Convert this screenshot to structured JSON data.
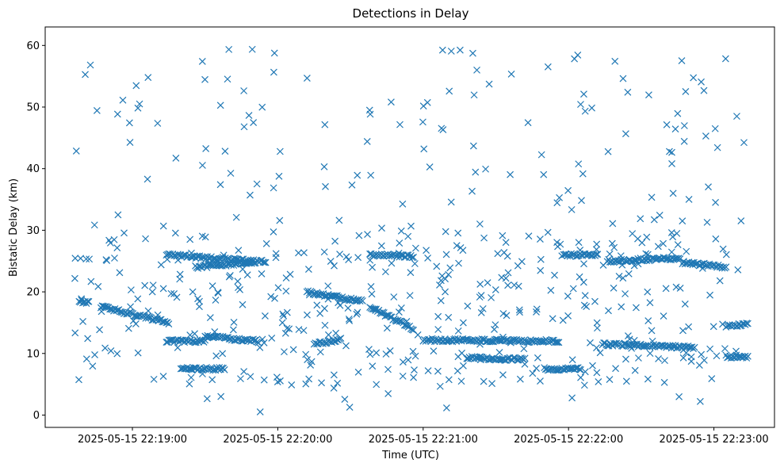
{
  "chart_data": {
    "type": "scatter",
    "title": "Detections in Delay",
    "xlabel": "Time (UTC)",
    "ylabel": "Bistatic Delay (km)",
    "x_axis_kind": "datetime",
    "xlim": [
      "2025-05-15 22:18:24",
      "2025-05-15 22:23:25"
    ],
    "ylim": [
      -2,
      63
    ],
    "x_ticks": [
      {
        "t": "2025-05-15 22:19:00",
        "label": "2025-05-15 22:19:00"
      },
      {
        "t": "2025-05-15 22:20:00",
        "label": "2025-05-15 22:20:00"
      },
      {
        "t": "2025-05-15 22:21:00",
        "label": "2025-05-15 22:21:00"
      },
      {
        "t": "2025-05-15 22:22:00",
        "label": "2025-05-15 22:22:00"
      },
      {
        "t": "2025-05-15 22:23:00",
        "label": "2025-05-15 22:23:00"
      }
    ],
    "y_ticks": [
      0,
      10,
      20,
      30,
      40,
      50,
      60
    ],
    "grid": false,
    "legend": "none",
    "marker": "x",
    "color": "#1f77b4",
    "start": "2025-05-15 22:18:36",
    "end": "2025-05-15 22:23:14",
    "tracks": [
      {
        "t0": "2025-05-15 22:18:38",
        "t1": "2025-05-15 22:18:42",
        "y0": 18.5,
        "y1": 18.2
      },
      {
        "t0": "2025-05-15 22:18:47",
        "t1": "2025-05-15 22:19:15",
        "y0": 17.6,
        "y1": 15.0
      },
      {
        "t0": "2025-05-15 22:19:26",
        "t1": "2025-05-15 22:19:55",
        "y0": 24.0,
        "y1": 25.0
      },
      {
        "t0": "2025-05-15 22:19:14",
        "t1": "2025-05-15 22:19:30",
        "y0": 12.0,
        "y1": 12.0
      },
      {
        "t0": "2025-05-15 22:19:30",
        "t1": "2025-05-15 22:19:52",
        "y0": 12.8,
        "y1": 12.0
      },
      {
        "t0": "2025-05-15 22:19:14",
        "t1": "2025-05-15 22:19:50",
        "y0": 26.0,
        "y1": 25.0
      },
      {
        "t0": "2025-05-15 22:19:20",
        "t1": "2025-05-15 22:19:38",
        "y0": 7.5,
        "y1": 7.5
      },
      {
        "t0": "2025-05-15 22:20:15",
        "t1": "2025-05-15 22:20:26",
        "y0": 11.5,
        "y1": 12.3
      },
      {
        "t0": "2025-05-15 22:20:12",
        "t1": "2025-05-15 22:20:35",
        "y0": 20.0,
        "y1": 18.5
      },
      {
        "t0": "2025-05-15 22:20:38",
        "t1": "2025-05-15 22:20:56",
        "y0": 26.0,
        "y1": 25.8
      },
      {
        "t0": "2025-05-15 22:20:38",
        "t1": "2025-05-15 22:20:56",
        "y0": 17.5,
        "y1": 14.0
      },
      {
        "t0": "2025-05-15 22:21:00",
        "t1": "2025-05-15 22:21:56",
        "y0": 12.2,
        "y1": 12.0
      },
      {
        "t0": "2025-05-15 22:21:18",
        "t1": "2025-05-15 22:21:42",
        "y0": 9.3,
        "y1": 9.0
      },
      {
        "t0": "2025-05-15 22:21:58",
        "t1": "2025-05-15 22:22:12",
        "y0": 26.0,
        "y1": 26.0
      },
      {
        "t0": "2025-05-15 22:22:16",
        "t1": "2025-05-15 22:22:46",
        "y0": 25.0,
        "y1": 25.5
      },
      {
        "t0": "2025-05-15 22:22:47",
        "t1": "2025-05-15 22:23:05",
        "y0": 24.8,
        "y1": 24.0
      },
      {
        "t0": "2025-05-15 22:22:14",
        "t1": "2025-05-15 22:22:52",
        "y0": 11.5,
        "y1": 11.0
      },
      {
        "t0": "2025-05-15 22:23:05",
        "t1": "2025-05-15 22:23:14",
        "y0": 14.5,
        "y1": 14.8
      },
      {
        "t0": "2025-05-15 22:23:05",
        "t1": "2025-05-15 22:23:14",
        "y0": 9.5,
        "y1": 9.5
      },
      {
        "t0": "2025-05-15 22:21:50",
        "t1": "2025-05-15 22:22:05",
        "y0": 7.5,
        "y1": 7.5
      }
    ],
    "scattered_count": 560
  }
}
